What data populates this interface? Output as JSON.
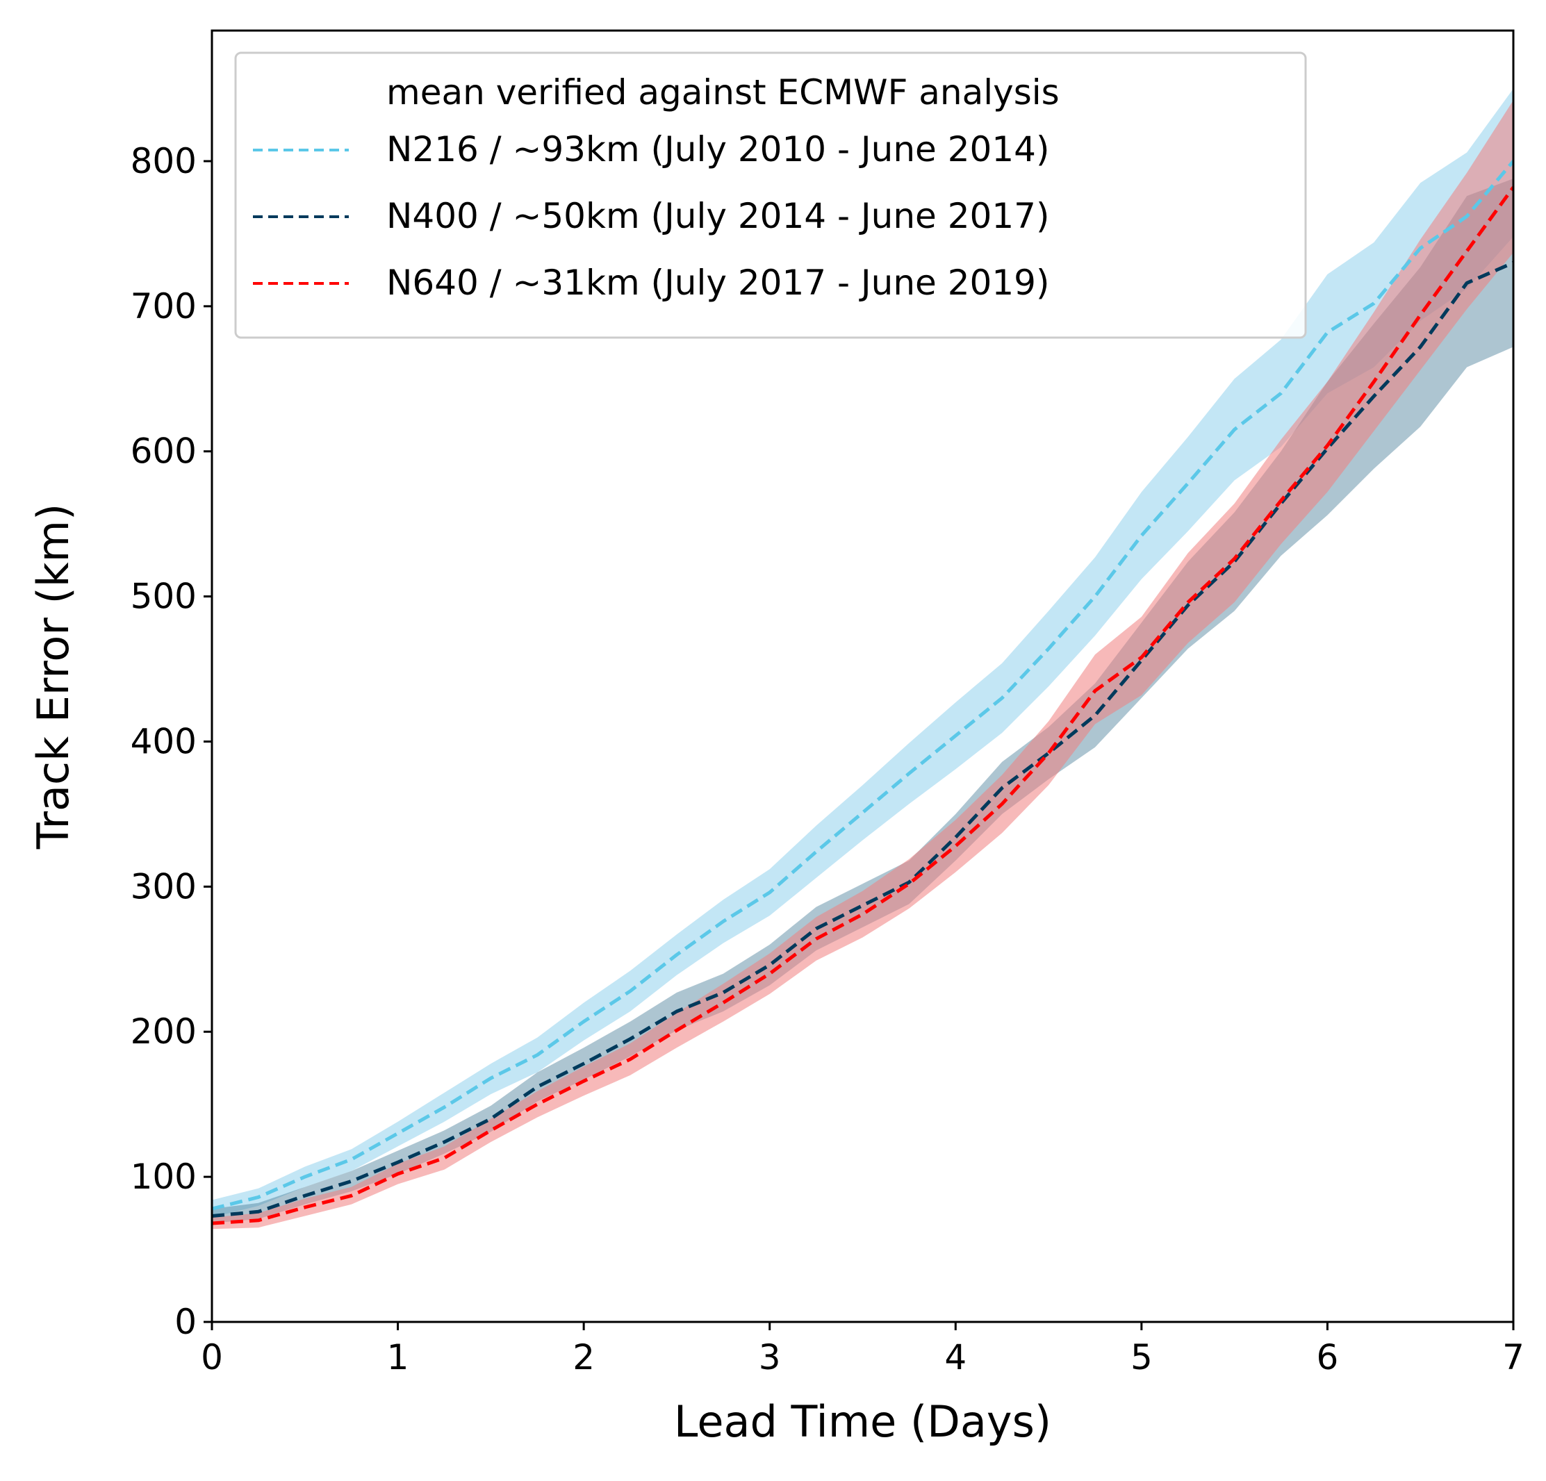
{
  "chart_data": {
    "type": "line",
    "xlabel": "Lead Time (Days)",
    "ylabel": "Track Error (km)",
    "xlim": [
      0,
      7
    ],
    "ylim": [
      0,
      890
    ],
    "xticks": [
      0,
      1,
      2,
      3,
      4,
      5,
      6,
      7
    ],
    "yticks": [
      0,
      100,
      200,
      300,
      400,
      500,
      600,
      700,
      800
    ],
    "grid": false,
    "legend_placement": "top-left",
    "legend_title": "mean verified against ECMWF analysis",
    "x": [
      0,
      0.25,
      0.5,
      0.75,
      1,
      1.25,
      1.5,
      1.75,
      2,
      2.25,
      2.5,
      2.75,
      3,
      3.25,
      3.5,
      3.75,
      4,
      4.25,
      4.5,
      4.75,
      5,
      5.25,
      5.5,
      5.75,
      6,
      6.25,
      6.5,
      6.75,
      7
    ],
    "series": [
      {
        "name": "N216 / ~93km (July 2010 - June 2014)",
        "color": "#5bc8e8",
        "band_color": "#87ceeb",
        "values": [
          78,
          86,
          100,
          112,
          130,
          148,
          168,
          184,
          207,
          228,
          253,
          276,
          296,
          324,
          351,
          378,
          404,
          430,
          464,
          500,
          542,
          578,
          615,
          640,
          682,
          702,
          740,
          762,
          800
        ],
        "lower": [
          72,
          80,
          93,
          104,
          121,
          138,
          157,
          172,
          194,
          214,
          239,
          261,
          280,
          306,
          332,
          357,
          381,
          406,
          438,
          473,
          512,
          545,
          580,
          603,
          640,
          658,
          690,
          712,
          748
        ],
        "upper": [
          84,
          92,
          107,
          119,
          138,
          158,
          178,
          196,
          220,
          242,
          267,
          291,
          312,
          342,
          370,
          399,
          427,
          454,
          490,
          527,
          572,
          610,
          650,
          677,
          722,
          744,
          785,
          806,
          850
        ]
      },
      {
        "name": "N400 / ~50km (July 2014 - June 2017)",
        "color": "#003a5c",
        "band_color": "#4a7f9a",
        "values": [
          73,
          76,
          87,
          97,
          110,
          124,
          140,
          162,
          178,
          195,
          214,
          227,
          246,
          271,
          287,
          303,
          334,
          368,
          392,
          418,
          456,
          494,
          524,
          564,
          602,
          638,
          672,
          716,
          730
        ],
        "lower": [
          68,
          71,
          81,
          90,
          102,
          116,
          131,
          152,
          167,
          183,
          201,
          214,
          232,
          256,
          272,
          288,
          318,
          350,
          374,
          396,
          430,
          464,
          490,
          528,
          556,
          588,
          617,
          658,
          672
        ],
        "upper": [
          78,
          82,
          93,
          104,
          118,
          132,
          149,
          172,
          189,
          207,
          227,
          240,
          260,
          286,
          302,
          318,
          350,
          386,
          410,
          440,
          482,
          524,
          558,
          600,
          648,
          688,
          727,
          776,
          788
        ]
      },
      {
        "name": "N640 / ~31km (July 2017 - June 2019)",
        "color": "#ff0000",
        "band_color": "#f08080",
        "values": [
          68,
          70,
          79,
          87,
          102,
          113,
          132,
          150,
          166,
          181,
          201,
          220,
          240,
          264,
          281,
          302,
          328,
          357,
          392,
          435,
          458,
          496,
          526,
          566,
          604,
          648,
          694,
          738,
          782
        ],
        "lower": [
          64,
          65,
          73,
          81,
          95,
          105,
          124,
          141,
          156,
          170,
          189,
          207,
          226,
          249,
          265,
          285,
          310,
          337,
          370,
          412,
          432,
          468,
          496,
          536,
          572,
          614,
          656,
          698,
          737
        ],
        "upper": [
          72,
          75,
          85,
          93,
          109,
          121,
          140,
          159,
          176,
          192,
          213,
          233,
          254,
          279,
          297,
          319,
          346,
          377,
          414,
          460,
          486,
          530,
          564,
          608,
          648,
          696,
          746,
          792,
          842
        ]
      }
    ]
  }
}
